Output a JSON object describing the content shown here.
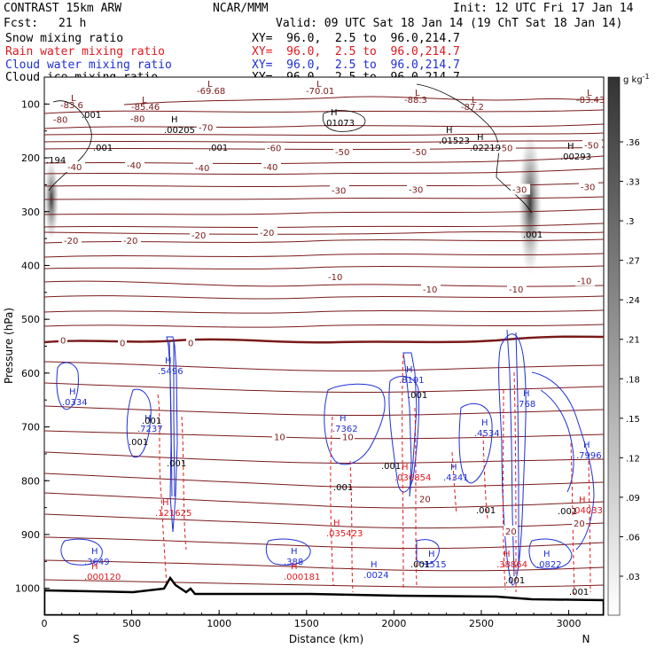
{
  "header": {
    "model": "CONTRAST 15km ARW",
    "org": "NCAR/MMM",
    "init": "Init: 12 UTC Fri 17 Jan 14",
    "fcst_label": "Fcst:",
    "fcst_value": "21 h",
    "valid": "Valid: 09 UTC Sat 18 Jan 14 (19 ChT Sat 18 Jan 14)"
  },
  "fields": [
    {
      "name": "Snow mixing ratio",
      "xy": "XY=  96.0,  2.5 to  96.0,214.7",
      "color": "#000000"
    },
    {
      "name": "Rain water mixing ratio",
      "xy": "XY=  96.0,  2.5 to  96.0,214.7",
      "color": "#e0191f"
    },
    {
      "name": "Cloud water mixing ratio",
      "xy": "XY=  96.0,  2.5 to  96.0,214.7",
      "color": "#1f2fd6"
    },
    {
      "name": "Cloud ice mixing ratio",
      "xy": "XY=  96.0,  2.5 to  96.0,214.7",
      "color": "#000000"
    }
  ],
  "chart_data": {
    "type": "contour",
    "title": "Cross section: mixing ratios and temperature",
    "xlabel": "Distance (km)",
    "ylabel": "Pressure (hPa)",
    "xlim": [
      0,
      3200
    ],
    "ylim": [
      1050,
      50
    ],
    "x_ticks": [
      0,
      500,
      1000,
      1500,
      2000,
      2500,
      3000
    ],
    "y_ticks": [
      100,
      200,
      300,
      400,
      500,
      600,
      700,
      800,
      900,
      1000
    ],
    "x_end_labels": {
      "left": "S",
      "right": "N"
    },
    "colorbar": {
      "unit": "g kg",
      "unit_exp": "-1",
      "ticks": [
        ".36",
        ".33",
        ".3",
        ".27",
        ".24",
        ".21",
        ".18",
        ".15",
        ".12",
        ".09",
        ".06",
        ".03"
      ]
    },
    "temperature_contours": [
      {
        "label": "-80",
        "p": 130
      },
      {
        "label": "-80",
        "p": 128
      },
      {
        "label": "-70",
        "p": 145
      },
      {
        "label": "-60",
        "p": 183
      },
      {
        "label": "-50",
        "p": 190
      },
      {
        "label": "-50",
        "p": 190
      },
      {
        "label": "-50",
        "p": 183
      },
      {
        "label": "-50",
        "p": 178
      },
      {
        "label": "-40",
        "p": 218
      },
      {
        "label": "-40",
        "p": 215
      },
      {
        "label": "-40",
        "p": 220
      },
      {
        "label": "-40",
        "p": 218
      },
      {
        "label": "-30",
        "p": 262
      },
      {
        "label": "-30",
        "p": 260
      },
      {
        "label": "-30",
        "p": 260
      },
      {
        "label": "-30",
        "p": 255
      },
      {
        "label": "-20",
        "p": 355
      },
      {
        "label": "-20",
        "p": 355
      },
      {
        "label": "-20",
        "p": 345
      },
      {
        "label": "-20",
        "p": 340
      },
      {
        "label": "-10",
        "p": 422
      },
      {
        "label": "-10",
        "p": 445
      },
      {
        "label": "-10",
        "p": 445
      },
      {
        "label": "-10",
        "p": 430
      },
      {
        "label": "0",
        "p": 540
      },
      {
        "label": "0",
        "p": 545
      },
      {
        "label": "0",
        "p": 545
      },
      {
        "label": "10",
        "p": 720
      },
      {
        "label": "10",
        "p": 720
      },
      {
        "label": "20",
        "p": 835
      },
      {
        "label": "20",
        "p": 895
      },
      {
        "label": "20",
        "p": 880
      }
    ],
    "maxima_labels": [
      {
        "text": "H",
        "value": ".3649",
        "color": "blue"
      },
      {
        "text": "H",
        "value": ".000120",
        "color": "red"
      },
      {
        "text": "H",
        "value": ".0334",
        "color": "blue"
      },
      {
        "text": "H",
        "value": ".7237",
        "color": "blue"
      },
      {
        "text": "H",
        "value": ".5496",
        "color": "blue"
      },
      {
        "text": "H",
        "value": ".121625",
        "color": "red"
      },
      {
        "text": "H",
        "value": ".388",
        "color": "blue"
      },
      {
        "text": "H",
        "value": ".000181",
        "color": "red"
      },
      {
        "text": "H",
        "value": ".7362",
        "color": "blue"
      },
      {
        "text": "H",
        "value": ".035423",
        "color": "red"
      },
      {
        "text": "H",
        "value": ".8191",
        "color": "blue"
      },
      {
        "text": "H",
        "value": ".036854",
        "color": "red"
      },
      {
        "text": "H",
        "value": ".0024",
        "color": "blue"
      },
      {
        "text": "H",
        "value": ".1515",
        "color": "blue"
      },
      {
        "text": "H",
        "value": ".4534",
        "color": "blue"
      },
      {
        "text": "H",
        "value": ".4341",
        "color": "blue"
      },
      {
        "text": "H",
        "value": ".768",
        "color": "blue"
      },
      {
        "text": "H",
        "value": ".7996",
        "color": "blue"
      },
      {
        "text": "H",
        "value": ".04033",
        "color": "red"
      },
      {
        "text": "H",
        "value": ".38864",
        "color": "red"
      },
      {
        "text": "H",
        "value": ".0822",
        "color": "blue"
      },
      {
        "text": "H",
        "value": ".01073",
        "color": "black"
      },
      {
        "text": "H",
        "value": ".01523",
        "color": "black"
      },
      {
        "text": "H",
        "value": ".02219",
        "color": "black"
      },
      {
        "text": "H",
        "value": ".00293",
        "color": "black"
      },
      {
        "text": "H",
        "value": ".00205",
        "color": "black"
      }
    ],
    "minima_labels": [
      "-83.6",
      "-85.46",
      "-69.68",
      "-70.01",
      "-88.3",
      "-87.2",
      "-83.43"
    ],
    "small_labels": [
      ".001",
      ".001",
      ".001",
      ".194",
      ".001",
      ".001",
      ".001",
      ".001",
      ".001",
      ".001",
      ".001",
      ".001",
      ".001",
      ".001",
      ".001",
      ".001"
    ]
  }
}
